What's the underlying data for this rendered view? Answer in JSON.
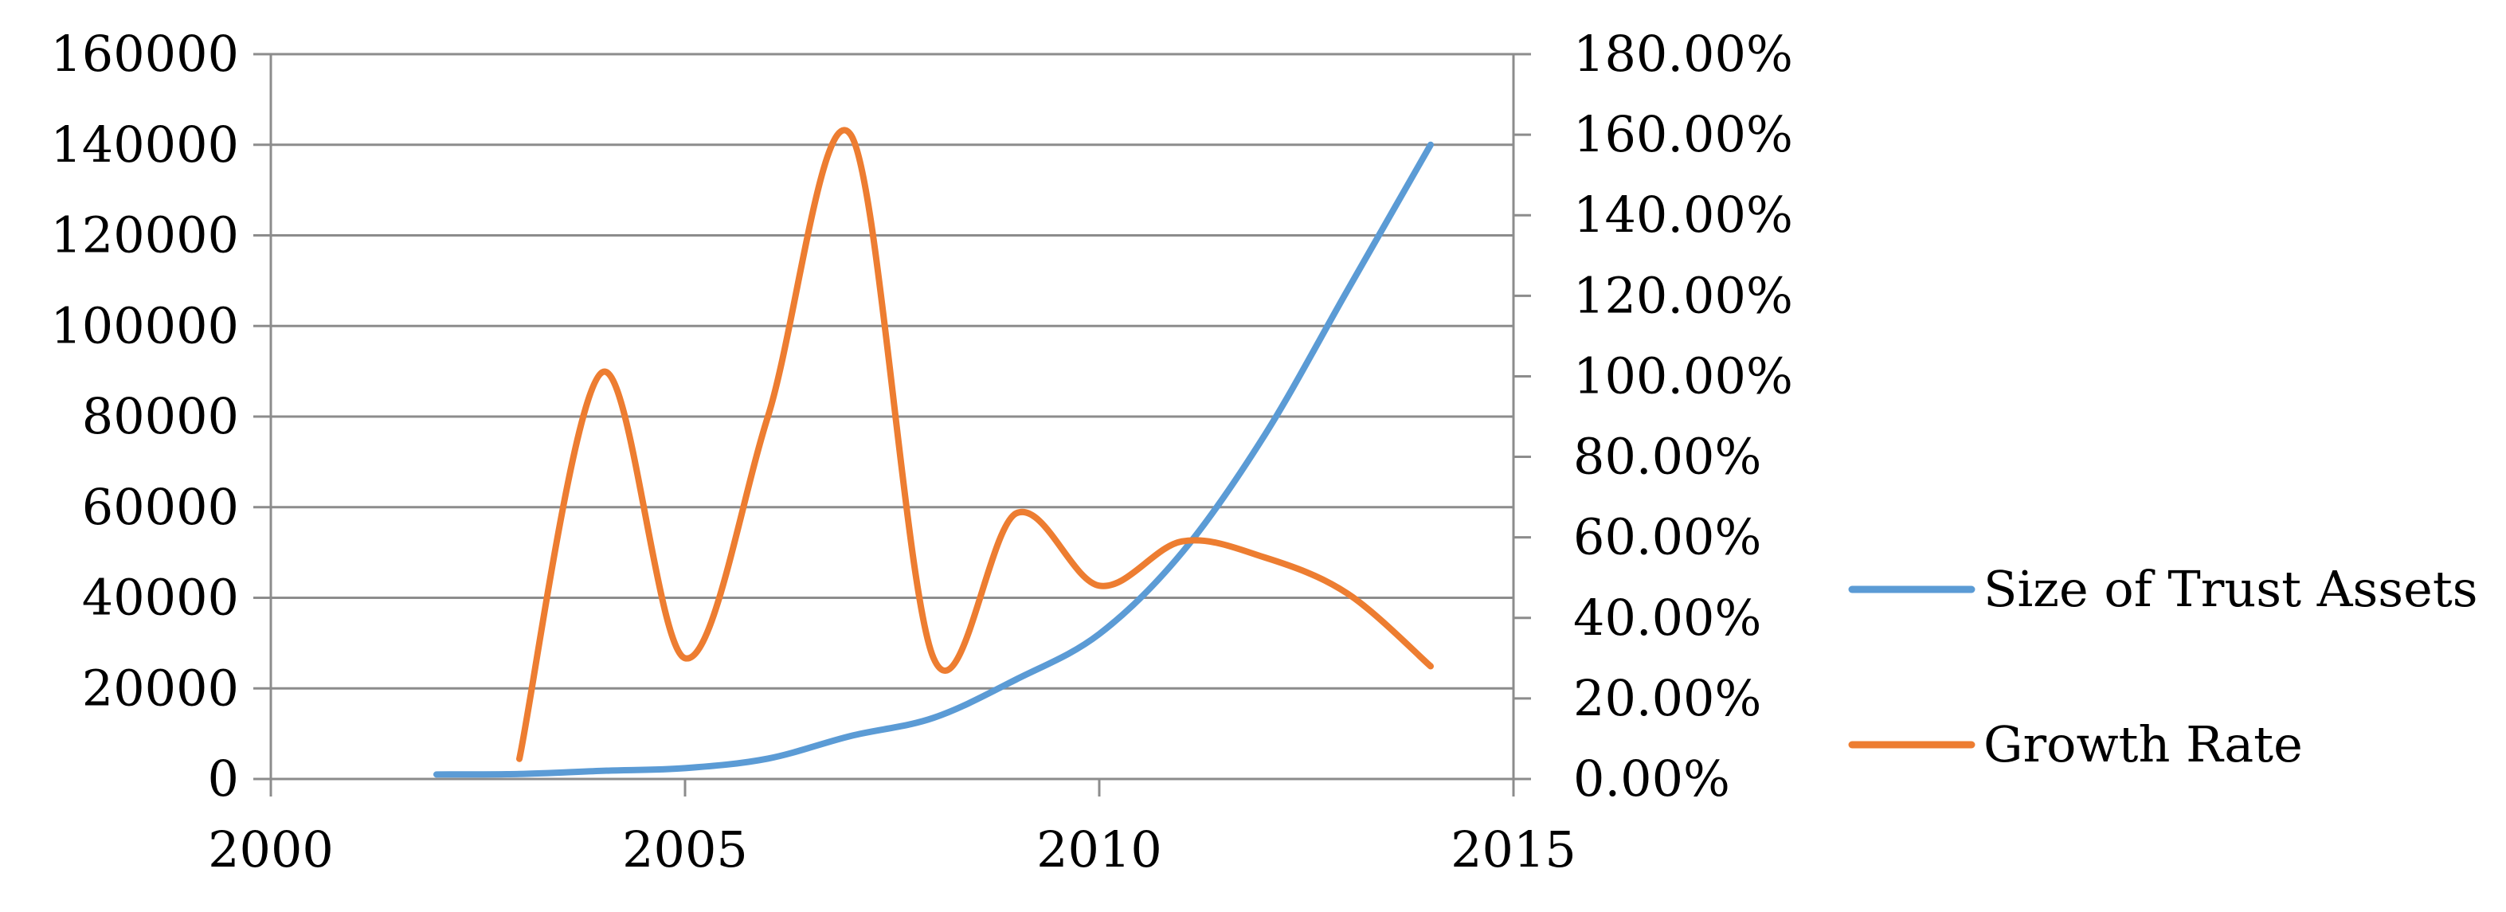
{
  "chart_data": {
    "type": "line",
    "title": "",
    "xlabel": "",
    "ylabel": "",
    "y2label": "",
    "x": [
      2002,
      2003,
      2004,
      2005,
      2006,
      2007,
      2008,
      2009,
      2010,
      2011,
      2012,
      2013,
      2014
    ],
    "xlim": [
      2000,
      2015
    ],
    "x_ticks": [
      2000,
      2005,
      2010,
      2015
    ],
    "ylim": [
      0,
      160000
    ],
    "y_ticks": [
      0,
      20000,
      40000,
      60000,
      80000,
      100000,
      120000,
      140000,
      160000
    ],
    "y2lim": [
      0,
      1.8
    ],
    "y2_ticks": [
      0,
      0.2,
      0.4,
      0.6,
      0.8,
      1.0,
      1.2,
      1.4,
      1.6,
      1.8
    ],
    "y2_tick_labels": [
      "0.00%",
      "20.00%",
      "40.00%",
      "60.00%",
      "80.00%",
      "100.00%",
      "120.00%",
      "140.00%",
      "160.00%",
      "180.00%"
    ],
    "grid": true,
    "legend_position": "right",
    "series": [
      {
        "name": "Size of Trust Assets",
        "axis": "left",
        "color": "#5b9bd5",
        "values": [
          1000,
          1100,
          1800,
          2400,
          4500,
          9500,
          13500,
          22000,
          32000,
          50000,
          76000,
          108000,
          140000
        ]
      },
      {
        "name": "Growth Rate",
        "axis": "right",
        "color": "#ed7d31",
        "values": [
          null,
          0.05,
          1.01,
          0.3,
          0.9,
          1.6,
          0.3,
          0.66,
          0.48,
          0.59,
          0.55,
          0.46,
          0.28
        ]
      }
    ]
  }
}
